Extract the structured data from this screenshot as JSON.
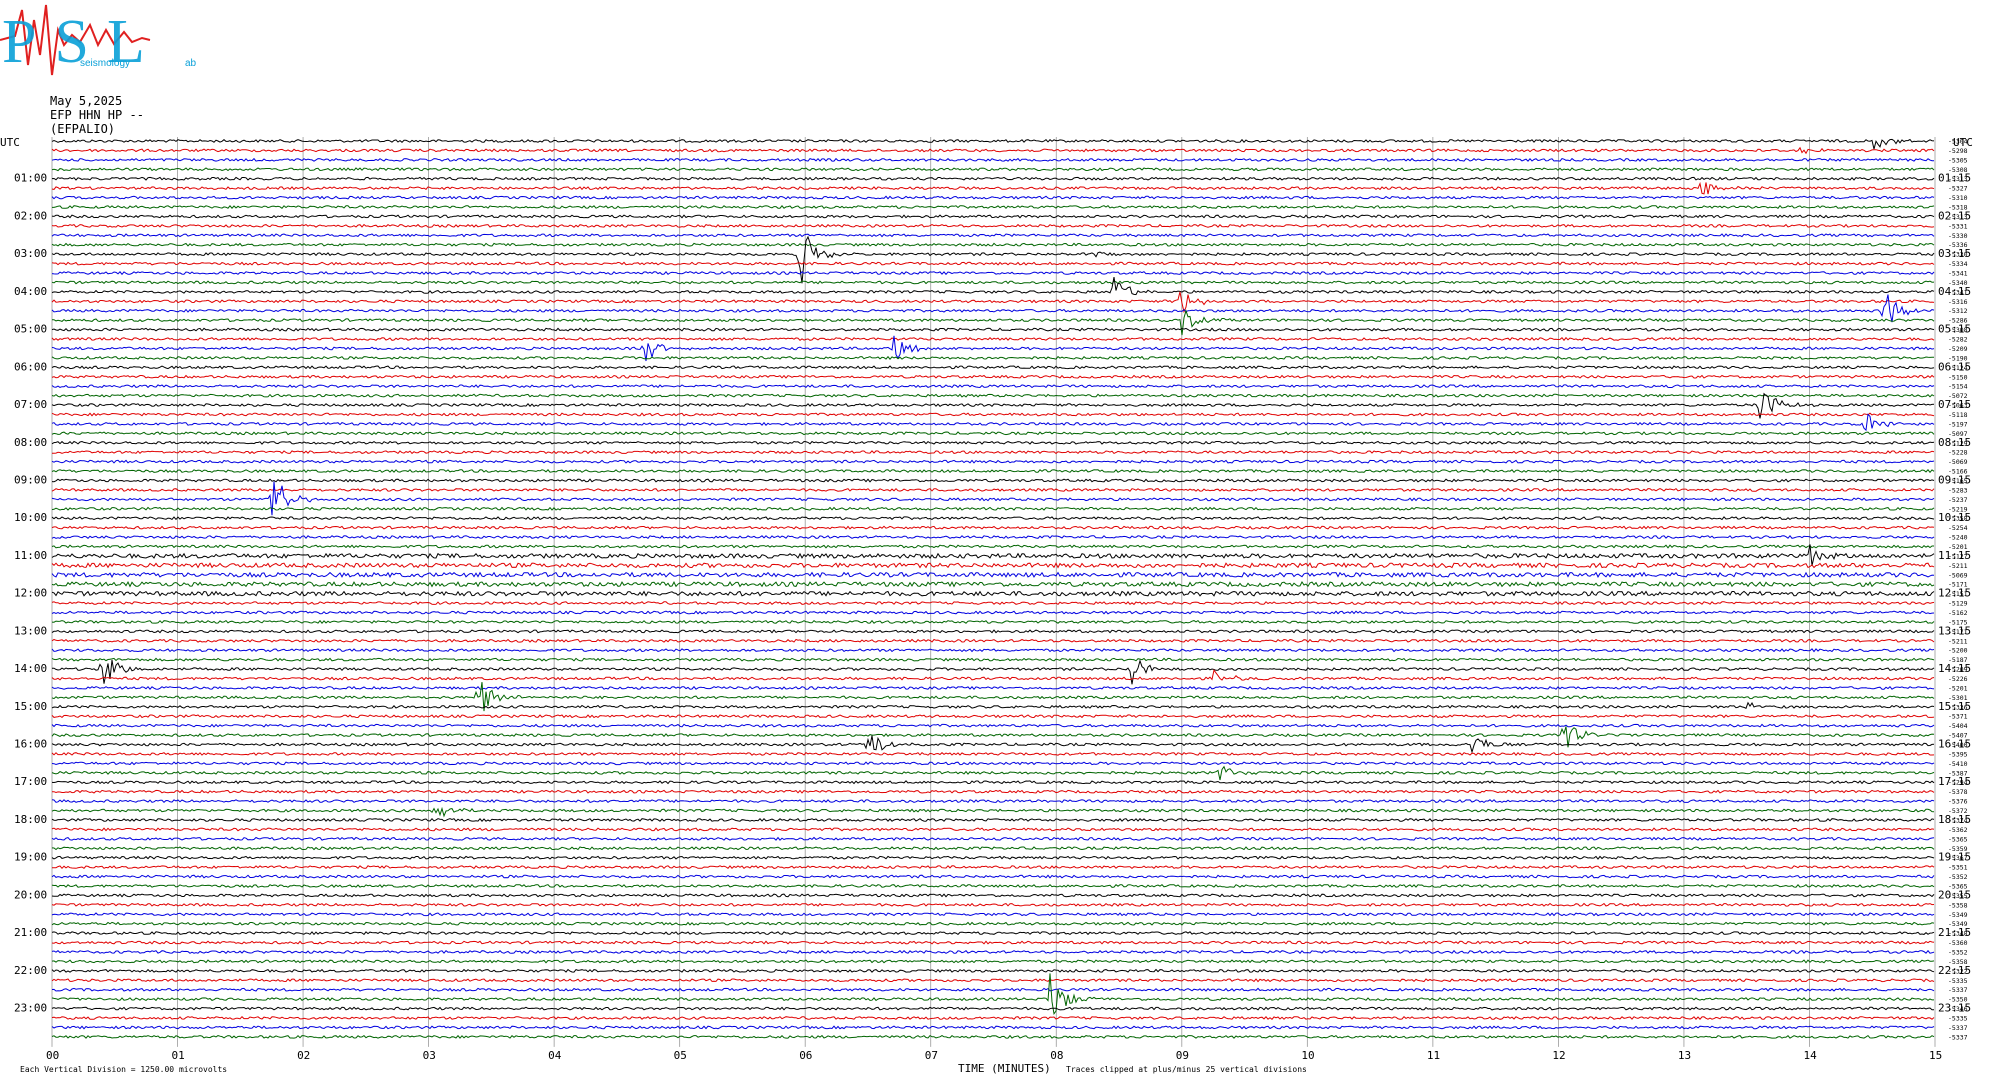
{
  "logo": {
    "letters": "PSL",
    "small_text": "seismology",
    "tiny_text": "ab"
  },
  "header": {
    "date": "May 5,2025",
    "station": "EFP HHN HP --",
    "site": "(EFPALIO)"
  },
  "chart_data": {
    "type": "line",
    "title": "",
    "xlabel": "TIME (MINUTES)",
    "x_ticks": [
      "00",
      "01",
      "02",
      "03",
      "04",
      "05",
      "06",
      "07",
      "08",
      "09",
      "10",
      "11",
      "12",
      "13",
      "14",
      "15"
    ],
    "xlim": [
      0,
      15
    ],
    "left_axis_label": "UTC",
    "right_axis_label": "UTC",
    "left_hour_labels": [
      "01:00",
      "02:00",
      "03:00",
      "04:00",
      "05:00",
      "06:00",
      "07:00",
      "08:00",
      "09:00",
      "10:00",
      "11:00",
      "12:00",
      "13:00",
      "14:00",
      "15:00",
      "16:00",
      "17:00",
      "18:00",
      "19:00",
      "20:00",
      "21:00",
      "22:00",
      "23:00"
    ],
    "right_hour_labels": [
      "01:15",
      "02:15",
      "03:15",
      "04:15",
      "05:15",
      "06:15",
      "07:15",
      "08:15",
      "09:15",
      "10:15",
      "11:15",
      "12:15",
      "13:15",
      "14:15",
      "15:15",
      "16:15",
      "17:15",
      "18:15",
      "19:15",
      "20:15",
      "21:15",
      "22:15",
      "23:15"
    ],
    "trace_count": 96,
    "trace_minutes": 15,
    "trace_colors": [
      "#000000",
      "#e00000",
      "#0000e0",
      "#006400"
    ],
    "trace_offsets": [
      "-5304",
      "-5298",
      "-5305",
      "-5308",
      "-5313",
      "-5327",
      "-5310",
      "-5318",
      "-5313",
      "-5331",
      "-5330",
      "-5336",
      "-5330",
      "-5334",
      "-5341",
      "-5340",
      "-5341",
      "-5316",
      "-5312",
      "-5286",
      "-5308",
      "-5282",
      "-5209",
      "-5190",
      "-5124",
      "-5150",
      "-5154",
      "-5072",
      "-5063",
      "-5118",
      "-5197",
      "-5097",
      "-5129",
      "-5228",
      "-5069",
      "-5166",
      "-5165",
      "-5283",
      "-5237",
      "-5219",
      "-5358",
      "-5254",
      "-5240",
      "-5201",
      "-5127",
      "-5211",
      "-5069",
      "-5171",
      "-5151",
      "-5129",
      "-5162",
      "-5175",
      "-5171",
      "-5211",
      "-5200",
      "-5187",
      "-5209",
      "-5226",
      "-5201",
      "-5301",
      "-5336",
      "-5371",
      "-5404",
      "-5407",
      "-5400",
      "-5395",
      "-5410",
      "-5387",
      "-5294",
      "-5378",
      "-5376",
      "-5372",
      "-5374",
      "-5362",
      "-5365",
      "-5359",
      "-5367",
      "-5351",
      "-5352",
      "-5365",
      "-5355",
      "-5358",
      "-5349",
      "-5349",
      "-5348",
      "-5360",
      "-5352",
      "-5358",
      "-5322",
      "-5335",
      "-5337",
      "-5350",
      "-5346",
      "-5335",
      "-5337",
      "-5337"
    ],
    "events": [
      {
        "trace": 0,
        "minute": 14.5,
        "amplitude": 1.2
      },
      {
        "trace": 1,
        "minute": 13.9,
        "amplitude": 0.5
      },
      {
        "trace": 5,
        "minute": 13.15,
        "amplitude": 1.6
      },
      {
        "trace": 12,
        "minute": 5.95,
        "amplitude": 4.0
      },
      {
        "trace": 12,
        "minute": 8.3,
        "amplitude": 0.6
      },
      {
        "trace": 16,
        "minute": 8.45,
        "amplitude": 2.0
      },
      {
        "trace": 17,
        "minute": 8.98,
        "amplitude": 2.0
      },
      {
        "trace": 18,
        "minute": 14.6,
        "amplitude": 2.5
      },
      {
        "trace": 19,
        "minute": 9.0,
        "amplitude": 1.5
      },
      {
        "trace": 22,
        "minute": 4.7,
        "amplitude": 2.0
      },
      {
        "trace": 22,
        "minute": 6.7,
        "amplitude": 1.6
      },
      {
        "trace": 28,
        "minute": 13.6,
        "amplitude": 2.8
      },
      {
        "trace": 30,
        "minute": 14.45,
        "amplitude": 1.5
      },
      {
        "trace": 38,
        "minute": 1.75,
        "amplitude": 3.5
      },
      {
        "trace": 44,
        "minute": 14.0,
        "amplitude": 1.2
      },
      {
        "trace": 56,
        "minute": 0.4,
        "amplitude": 2.5
      },
      {
        "trace": 56,
        "minute": 8.6,
        "amplitude": 2.2
      },
      {
        "trace": 57,
        "minute": 9.25,
        "amplitude": 1.2
      },
      {
        "trace": 59,
        "minute": 3.4,
        "amplitude": 2.5
      },
      {
        "trace": 60,
        "minute": 13.5,
        "amplitude": 0.6
      },
      {
        "trace": 64,
        "minute": 6.5,
        "amplitude": 2.0
      },
      {
        "trace": 64,
        "minute": 11.3,
        "amplitude": 1.8
      },
      {
        "trace": 63,
        "minute": 12.05,
        "amplitude": 1.8
      },
      {
        "trace": 67,
        "minute": 9.3,
        "amplitude": 1.0
      },
      {
        "trace": 71,
        "minute": 3.05,
        "amplitude": 1.2
      },
      {
        "trace": 91,
        "minute": 7.95,
        "amplitude": 3.5
      }
    ]
  },
  "footer": {
    "scale_note": "Each Vertical Division = 1250.00 microvolts",
    "clip_note": "Traces clipped at plus/minus 25 vertical divisions"
  }
}
